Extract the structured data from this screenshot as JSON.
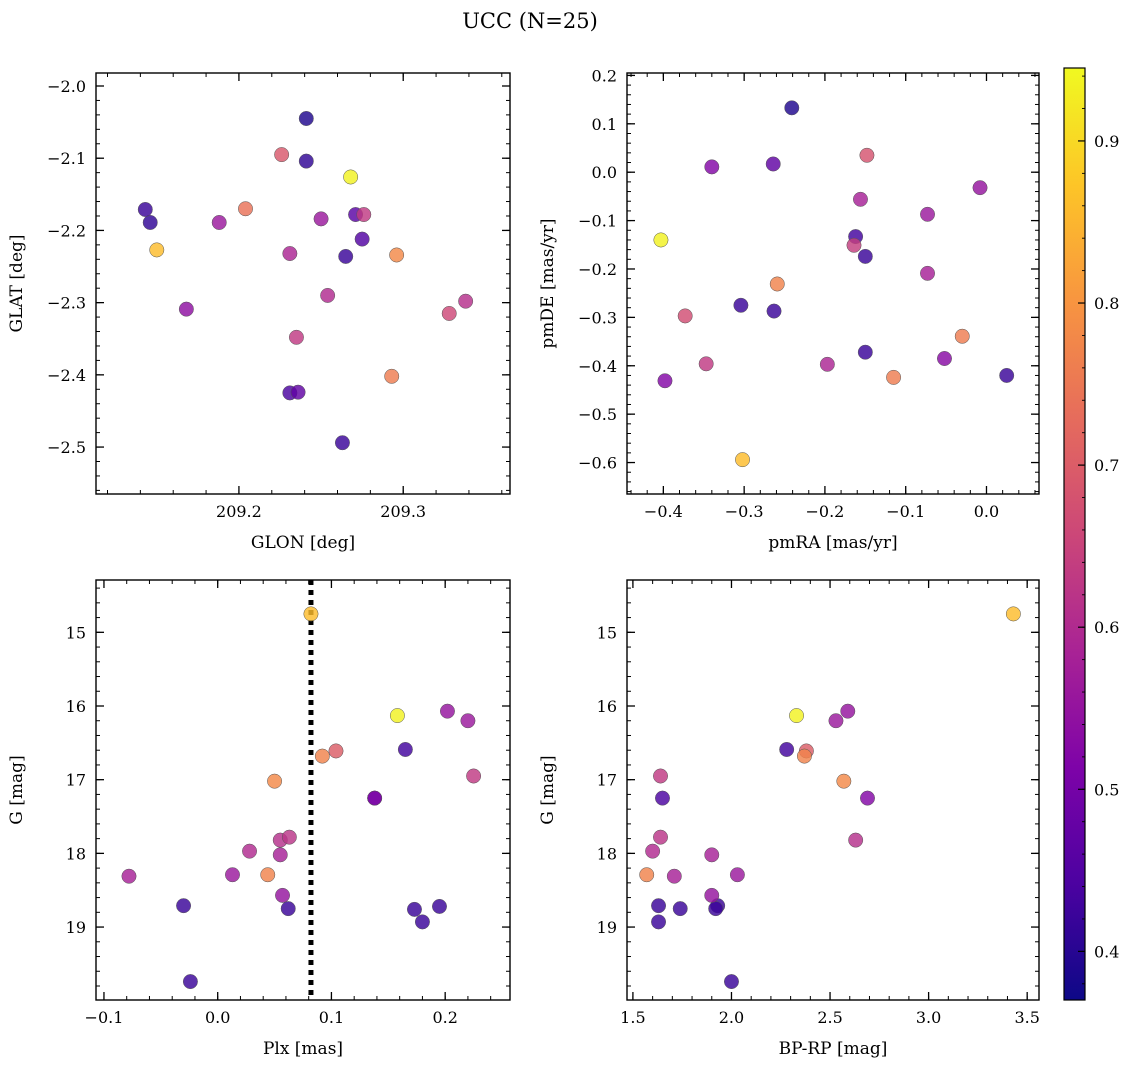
{
  "figure_title": "UCC (N=25)",
  "colormap": "plasma",
  "colorbar": {
    "vmin": 0.37,
    "vmax": 0.945,
    "ticks": [
      0.4,
      0.5,
      0.6,
      0.7,
      0.8,
      0.9
    ],
    "tick_labels": [
      "0.4",
      "0.5",
      "0.6",
      "0.7",
      "0.8",
      "0.9"
    ]
  },
  "chart_data": [
    {
      "type": "scatter",
      "title": "",
      "xlabel": "GLON [deg]",
      "ylabel": "GLAT [deg]",
      "xlim": [
        209.113,
        209.365
      ],
      "ylim": [
        -2.565,
        -1.982
      ],
      "xticks": [
        209.2,
        209.3
      ],
      "xtick_labels": [
        "209.2",
        "209.3"
      ],
      "yticks": [
        -2.0,
        -2.1,
        -2.2,
        -2.3,
        -2.4,
        -2.5
      ],
      "ytick_labels": [
        "−2.0",
        "−2.1",
        "−2.2",
        "−2.3",
        "−2.4",
        "−2.5"
      ],
      "grid": false,
      "points": [
        {
          "x": 209.241,
          "y": -2.045,
          "c": 0.39
        },
        {
          "x": 209.226,
          "y": -2.095,
          "c": 0.69
        },
        {
          "x": 209.241,
          "y": -2.104,
          "c": 0.41
        },
        {
          "x": 209.268,
          "y": -2.126,
          "c": 0.935
        },
        {
          "x": 209.143,
          "y": -2.171,
          "c": 0.42
        },
        {
          "x": 209.146,
          "y": -2.189,
          "c": 0.41
        },
        {
          "x": 209.204,
          "y": -2.17,
          "c": 0.74
        },
        {
          "x": 209.188,
          "y": -2.189,
          "c": 0.56
        },
        {
          "x": 209.15,
          "y": -2.227,
          "c": 0.86
        },
        {
          "x": 209.25,
          "y": -2.184,
          "c": 0.56
        },
        {
          "x": 209.271,
          "y": -2.178,
          "c": 0.46
        },
        {
          "x": 209.276,
          "y": -2.178,
          "c": 0.63
        },
        {
          "x": 209.275,
          "y": -2.212,
          "c": 0.45
        },
        {
          "x": 209.231,
          "y": -2.232,
          "c": 0.59
        },
        {
          "x": 209.265,
          "y": -2.236,
          "c": 0.42
        },
        {
          "x": 209.296,
          "y": -2.234,
          "c": 0.78
        },
        {
          "x": 209.168,
          "y": -2.309,
          "c": 0.54
        },
        {
          "x": 209.254,
          "y": -2.29,
          "c": 0.6
        },
        {
          "x": 209.235,
          "y": -2.348,
          "c": 0.63
        },
        {
          "x": 209.338,
          "y": -2.298,
          "c": 0.61
        },
        {
          "x": 209.328,
          "y": -2.315,
          "c": 0.66
        },
        {
          "x": 209.293,
          "y": -2.402,
          "c": 0.76
        },
        {
          "x": 209.231,
          "y": -2.425,
          "c": 0.44
        },
        {
          "x": 209.236,
          "y": -2.424,
          "c": 0.47
        },
        {
          "x": 209.263,
          "y": -2.494,
          "c": 0.42
        }
      ]
    },
    {
      "type": "scatter",
      "title": "",
      "xlabel": "pmRA [mas/yr]",
      "ylabel": "pmDE [mas/yr]",
      "xlim": [
        -0.445,
        0.065
      ],
      "ylim": [
        -0.665,
        0.205
      ],
      "xticks": [
        -0.4,
        -0.3,
        -0.2,
        -0.1,
        0.0
      ],
      "xtick_labels": [
        "−0.4",
        "−0.3",
        "−0.2",
        "−0.1",
        "0.0"
      ],
      "yticks": [
        0.2,
        0.1,
        0.0,
        -0.1,
        -0.2,
        -0.3,
        -0.4,
        -0.5,
        -0.6
      ],
      "ytick_labels": [
        "0.2",
        "0.1",
        "0.0",
        "−0.1",
        "−0.2",
        "−0.3",
        "−0.4",
        "−0.5",
        "−0.6"
      ],
      "grid": false,
      "points": [
        {
          "x": -0.241,
          "y": 0.133,
          "c": 0.39
        },
        {
          "x": -0.34,
          "y": 0.011,
          "c": 0.52
        },
        {
          "x": -0.264,
          "y": 0.017,
          "c": 0.47
        },
        {
          "x": -0.148,
          "y": 0.035,
          "c": 0.68
        },
        {
          "x": -0.008,
          "y": -0.032,
          "c": 0.55
        },
        {
          "x": -0.156,
          "y": -0.056,
          "c": 0.58
        },
        {
          "x": -0.073,
          "y": -0.087,
          "c": 0.56
        },
        {
          "x": -0.403,
          "y": -0.14,
          "c": 0.935
        },
        {
          "x": -0.162,
          "y": -0.133,
          "c": 0.43
        },
        {
          "x": -0.164,
          "y": -0.151,
          "c": 0.64
        },
        {
          "x": -0.15,
          "y": -0.174,
          "c": 0.42
        },
        {
          "x": -0.073,
          "y": -0.209,
          "c": 0.58
        },
        {
          "x": -0.259,
          "y": -0.231,
          "c": 0.77
        },
        {
          "x": -0.304,
          "y": -0.275,
          "c": 0.42
        },
        {
          "x": -0.263,
          "y": -0.287,
          "c": 0.42
        },
        {
          "x": -0.373,
          "y": -0.297,
          "c": 0.67
        },
        {
          "x": -0.03,
          "y": -0.339,
          "c": 0.76
        },
        {
          "x": -0.15,
          "y": -0.372,
          "c": 0.42
        },
        {
          "x": -0.052,
          "y": -0.385,
          "c": 0.53
        },
        {
          "x": -0.347,
          "y": -0.396,
          "c": 0.63
        },
        {
          "x": -0.197,
          "y": -0.397,
          "c": 0.59
        },
        {
          "x": -0.115,
          "y": -0.424,
          "c": 0.76
        },
        {
          "x": 0.025,
          "y": -0.42,
          "c": 0.42
        },
        {
          "x": -0.398,
          "y": -0.431,
          "c": 0.52
        },
        {
          "x": -0.302,
          "y": -0.594,
          "c": 0.86
        }
      ]
    },
    {
      "type": "scatter",
      "title": "",
      "xlabel": "Plx [mas]",
      "ylabel": "G [mag]",
      "xlim": [
        -0.107,
        0.257
      ],
      "ylim": [
        19.99,
        14.29
      ],
      "xticks": [
        -0.1,
        0.0,
        0.1,
        0.2
      ],
      "xtick_labels": [
        "−0.1",
        "0.0",
        "0.1",
        "0.2"
      ],
      "yticks": [
        15,
        16,
        17,
        18,
        19
      ],
      "ytick_labels": [
        "15",
        "16",
        "17",
        "18",
        "19"
      ],
      "grid": false,
      "vline": {
        "x": 0.082,
        "style": "dotted",
        "color": "#000000"
      },
      "points": [
        {
          "x": 0.082,
          "y": 14.75,
          "c": 0.86
        },
        {
          "x": 0.158,
          "y": 16.13,
          "c": 0.935
        },
        {
          "x": 0.202,
          "y": 16.07,
          "c": 0.55
        },
        {
          "x": 0.22,
          "y": 16.2,
          "c": 0.56
        },
        {
          "x": 0.104,
          "y": 16.61,
          "c": 0.7
        },
        {
          "x": 0.092,
          "y": 16.68,
          "c": 0.77
        },
        {
          "x": 0.165,
          "y": 16.59,
          "c": 0.43
        },
        {
          "x": 0.225,
          "y": 16.95,
          "c": 0.63
        },
        {
          "x": 0.05,
          "y": 17.02,
          "c": 0.78
        },
        {
          "x": 0.138,
          "y": 17.25,
          "c": 0.44
        },
        {
          "x": 0.138,
          "y": 17.25,
          "c": 0.52
        },
        {
          "x": 0.055,
          "y": 17.82,
          "c": 0.61
        },
        {
          "x": 0.063,
          "y": 17.78,
          "c": 0.62
        },
        {
          "x": 0.028,
          "y": 17.97,
          "c": 0.6
        },
        {
          "x": 0.055,
          "y": 18.02,
          "c": 0.58
        },
        {
          "x": -0.078,
          "y": 18.31,
          "c": 0.58
        },
        {
          "x": 0.013,
          "y": 18.29,
          "c": 0.56
        },
        {
          "x": 0.044,
          "y": 18.29,
          "c": 0.77
        },
        {
          "x": 0.057,
          "y": 18.57,
          "c": 0.55
        },
        {
          "x": -0.03,
          "y": 18.71,
          "c": 0.42
        },
        {
          "x": 0.062,
          "y": 18.75,
          "c": 0.42
        },
        {
          "x": 0.173,
          "y": 18.76,
          "c": 0.42
        },
        {
          "x": 0.195,
          "y": 18.72,
          "c": 0.42
        },
        {
          "x": 0.18,
          "y": 18.93,
          "c": 0.42
        },
        {
          "x": -0.024,
          "y": 19.74,
          "c": 0.42
        }
      ]
    },
    {
      "type": "scatter",
      "title": "",
      "xlabel": "BP-RP [mag]",
      "ylabel": "G [mag]",
      "xlim": [
        1.47,
        3.56
      ],
      "ylim": [
        19.99,
        14.29
      ],
      "xticks": [
        1.5,
        2.0,
        2.5,
        3.0,
        3.5
      ],
      "xtick_labels": [
        "1.5",
        "2.0",
        "2.5",
        "3.0",
        "3.5"
      ],
      "yticks": [
        15,
        16,
        17,
        18,
        19
      ],
      "ytick_labels": [
        "15",
        "16",
        "17",
        "18",
        "19"
      ],
      "grid": false,
      "points": [
        {
          "x": 3.43,
          "y": 14.75,
          "c": 0.86
        },
        {
          "x": 2.33,
          "y": 16.13,
          "c": 0.935
        },
        {
          "x": 2.59,
          "y": 16.07,
          "c": 0.55
        },
        {
          "x": 2.53,
          "y": 16.2,
          "c": 0.56
        },
        {
          "x": 2.28,
          "y": 16.59,
          "c": 0.43
        },
        {
          "x": 2.38,
          "y": 16.61,
          "c": 0.7
        },
        {
          "x": 2.37,
          "y": 16.68,
          "c": 0.77
        },
        {
          "x": 1.64,
          "y": 16.95,
          "c": 0.63
        },
        {
          "x": 2.57,
          "y": 17.02,
          "c": 0.78
        },
        {
          "x": 1.65,
          "y": 17.25,
          "c": 0.44
        },
        {
          "x": 2.69,
          "y": 17.25,
          "c": 0.52
        },
        {
          "x": 1.64,
          "y": 17.78,
          "c": 0.62
        },
        {
          "x": 2.63,
          "y": 17.82,
          "c": 0.61
        },
        {
          "x": 1.6,
          "y": 17.97,
          "c": 0.6
        },
        {
          "x": 1.9,
          "y": 18.02,
          "c": 0.58
        },
        {
          "x": 1.57,
          "y": 18.29,
          "c": 0.77
        },
        {
          "x": 1.71,
          "y": 18.31,
          "c": 0.58
        },
        {
          "x": 2.03,
          "y": 18.29,
          "c": 0.56
        },
        {
          "x": 1.9,
          "y": 18.57,
          "c": 0.55
        },
        {
          "x": 1.63,
          "y": 18.71,
          "c": 0.42
        },
        {
          "x": 1.93,
          "y": 18.71,
          "c": 0.42
        },
        {
          "x": 1.74,
          "y": 18.75,
          "c": 0.42
        },
        {
          "x": 1.92,
          "y": 18.75,
          "c": 0.42
        },
        {
          "x": 1.63,
          "y": 18.93,
          "c": 0.42
        },
        {
          "x": 2.0,
          "y": 19.74,
          "c": 0.42
        }
      ]
    }
  ]
}
